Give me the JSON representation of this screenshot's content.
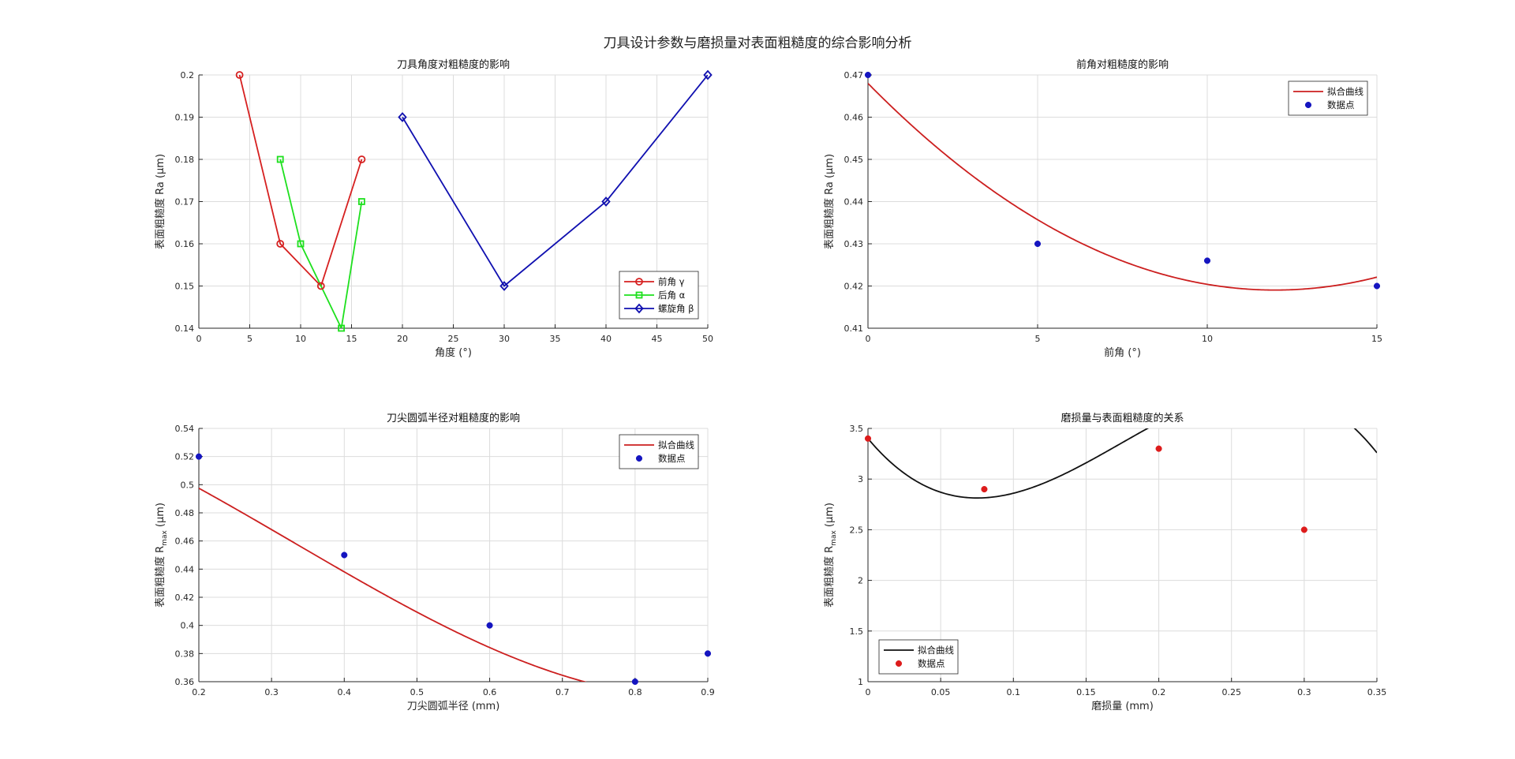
{
  "figure_title": "刀具设计参数与磨损量对表面粗糙度的综合影响分析",
  "chart_data": [
    {
      "id": "angle",
      "type": "line",
      "title": "刀具角度对粗糙度的影响",
      "xlabel": "角度 (°)",
      "ylabel": "表面粗糙度 Ra (μm)",
      "xlim": [
        0,
        50
      ],
      "ylim": [
        0.14,
        0.2
      ],
      "xticks": [
        0,
        5,
        10,
        15,
        20,
        25,
        30,
        35,
        40,
        45,
        50
      ],
      "yticks": [
        0.14,
        0.15,
        0.16,
        0.17,
        0.18,
        0.19,
        0.2
      ],
      "grid": true,
      "legend_position": "bottom-right",
      "series": [
        {
          "name": "前角 γ",
          "color": "#d62020",
          "marker": "circle",
          "x": [
            4,
            8,
            12,
            16
          ],
          "y": [
            0.2,
            0.16,
            0.15,
            0.18
          ]
        },
        {
          "name": "后角 α",
          "color": "#1ee01e",
          "marker": "square",
          "x": [
            8,
            10,
            14,
            16
          ],
          "y": [
            0.18,
            0.16,
            0.14,
            0.17
          ]
        },
        {
          "name": "螺旋角 β",
          "color": "#1010b0",
          "marker": "diamond",
          "x": [
            20,
            30,
            40,
            50
          ],
          "y": [
            0.19,
            0.15,
            0.17,
            0.2
          ]
        }
      ]
    },
    {
      "id": "rake",
      "type": "scatter",
      "title": "前角对粗糙度的影响",
      "xlabel": "前角 (°)",
      "ylabel": "表面粗糙度 Ra (μm)",
      "xlim": [
        0,
        15
      ],
      "ylim": [
        0.41,
        0.47
      ],
      "xticks": [
        0,
        5,
        10,
        15
      ],
      "yticks": [
        0.41,
        0.42,
        0.43,
        0.44,
        0.45,
        0.46,
        0.47
      ],
      "grid": true,
      "legend_position": "top-right",
      "series": [
        {
          "name": "拟合曲线",
          "kind": "curve",
          "color": "#cc1f1f",
          "coeffs": [
            0.468,
            -0.00816,
            0.00034
          ]
        },
        {
          "name": "数据点",
          "kind": "points",
          "color": "#1515c0",
          "x": [
            0,
            5,
            10,
            15
          ],
          "y": [
            0.47,
            0.43,
            0.426,
            0.42
          ]
        }
      ]
    },
    {
      "id": "radius",
      "type": "scatter",
      "title": "刀尖圆弧半径对粗糙度的影响",
      "xlabel": "刀尖圆弧半径 (mm)",
      "ylabel": "表面粗糙度 R",
      "ylabel_sub": "max",
      "ylabel_unit": " (μm)",
      "xlim": [
        0.2,
        0.9
      ],
      "ylim": [
        0.36,
        0.54
      ],
      "xticks": [
        0.2,
        0.3,
        0.4,
        0.5,
        0.6,
        0.7,
        0.8,
        0.9
      ],
      "yticks": [
        0.36,
        0.38,
        0.4,
        0.42,
        0.44,
        0.46,
        0.48,
        0.5,
        0.52,
        0.54
      ],
      "grid": true,
      "legend_position": "top-right",
      "series": [
        {
          "name": "拟合曲线",
          "kind": "curve",
          "color": "#cc1f1f",
          "coeffs": [
            0.5462,
            -0.1897,
            -0.3375,
            0.3397
          ]
        },
        {
          "name": "数据点",
          "kind": "points",
          "color": "#1515c0",
          "x": [
            0.2,
            0.4,
            0.6,
            0.8,
            0.9
          ],
          "y": [
            0.52,
            0.45,
            0.4,
            0.36,
            0.38
          ]
        }
      ]
    },
    {
      "id": "wear",
      "type": "scatter",
      "title": "磨损量与表面粗糙度的关系",
      "xlabel": "磨损量 (mm)",
      "ylabel": "表面粗糙度 R",
      "ylabel_sub": "max",
      "ylabel_unit": " (μm)",
      "xlim": [
        0,
        0.35
      ],
      "ylim": [
        1,
        3.5
      ],
      "xticks": [
        0,
        0.05,
        0.1,
        0.15,
        0.2,
        0.25,
        0.3,
        0.35
      ],
      "yticks": [
        1,
        1.5,
        2,
        2.5,
        3,
        3.5
      ],
      "grid": true,
      "legend_position": "bottom-left",
      "series": [
        {
          "name": "拟合曲线",
          "kind": "curve",
          "color": "#111111",
          "coeffs": [
            3.4,
            -17.2,
            146,
            -280
          ]
        },
        {
          "name": "数据点",
          "kind": "points",
          "color": "#dd1c1c",
          "x": [
            0,
            0.08,
            0.2,
            0.3
          ],
          "y": [
            3.4,
            2.9,
            3.3,
            2.5
          ]
        }
      ]
    }
  ]
}
